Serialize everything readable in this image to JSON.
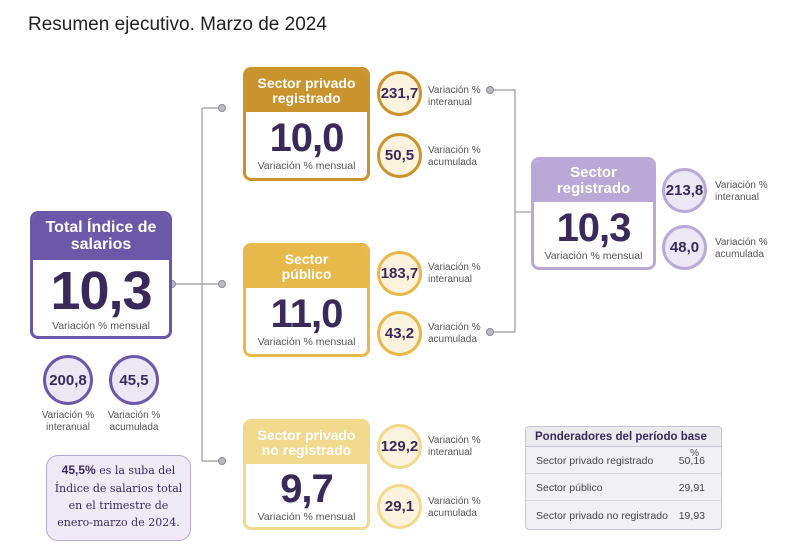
{
  "title": "Resumen ejecutivo. Marzo de 2024",
  "colors": {
    "total": "#6b58a8",
    "privado_registrado": "#c9932e",
    "publico": "#e6b94a",
    "no_registrado": "#f1d98e",
    "registrado": "#b9a9d6",
    "circle_fill_yellow": "#fbf3dd",
    "circle_fill_purple": "#ece7f4"
  },
  "total": {
    "title": "Total Índice de salarios",
    "value": "10,3",
    "caption": "Variación % mensual",
    "interanual": "200,8",
    "acumulada": "45,5",
    "interanual_label": "Variación % interanual",
    "acumulada_label": "Variación % acumulada"
  },
  "note": {
    "highlight": "45,5%",
    "text": "es la suba del Índice de salarios total en el trimestre de enero-marzo de 2024."
  },
  "sectors": [
    {
      "id": "privado_registrado",
      "title": "Sector privado registrado",
      "value": "10,0",
      "caption": "Variación % mensual",
      "interanual": "231,7",
      "acumulada": "50,5",
      "interanual_label": "Variación % interanual",
      "acumulada_label": "Variación % acumulada"
    },
    {
      "id": "publico",
      "title": "Sector público",
      "value": "11,0",
      "caption": "Variación % mensual",
      "interanual": "183,7",
      "acumulada": "43,2",
      "interanual_label": "Variación % interanual",
      "acumulada_label": "Variación % acumulada"
    },
    {
      "id": "no_registrado",
      "title": "Sector privado no registrado",
      "value": "9,7",
      "caption": "Variación % mensual",
      "interanual": "129,2",
      "acumulada": "29,1",
      "interanual_label": "Variación % interanual",
      "acumulada_label": "Variación % acumulada"
    }
  ],
  "registrado": {
    "title": "Sector registrado",
    "value": "10,3",
    "caption": "Variación % mensual",
    "interanual": "213,8",
    "acumulada": "48,0",
    "interanual_label": "Variación % interanual",
    "acumulada_label": "Variación % acumulada"
  },
  "ponderadores": {
    "title": "Ponderadores del período base",
    "unit": "%",
    "rows": [
      {
        "name": "Sector privado registrado",
        "value": "50,16"
      },
      {
        "name": "Sector público",
        "value": "29,91"
      },
      {
        "name": "Sector privado no registrado",
        "value": "19,93"
      }
    ]
  }
}
